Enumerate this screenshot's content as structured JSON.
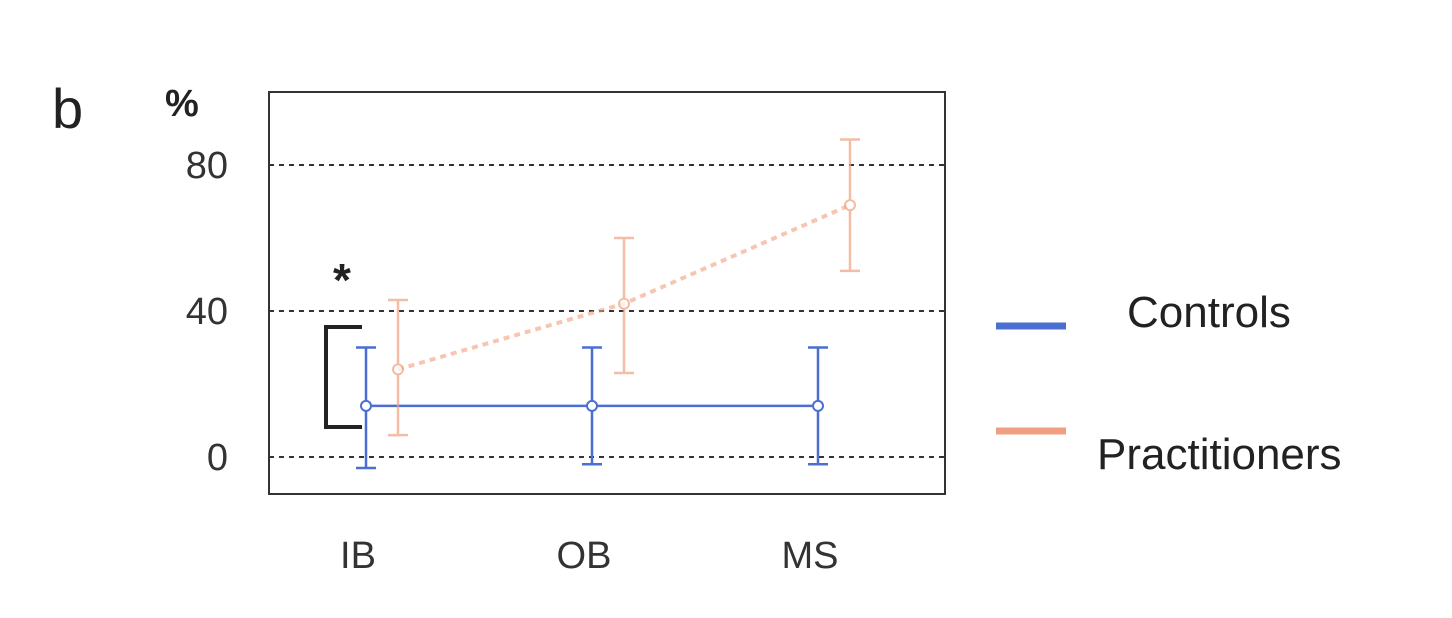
{
  "panel_label": "b",
  "chart_data": {
    "type": "line",
    "ylabel": "%",
    "ylim": [
      -10,
      100
    ],
    "yticks": [
      0,
      40,
      80
    ],
    "categories": [
      "IB",
      "OB",
      "MS"
    ],
    "grid": "horizontal-dashed",
    "legend_position": "right",
    "series": [
      {
        "name": "Controls",
        "color": "#4a6fd0",
        "values": [
          14,
          14,
          14
        ],
        "error_low": [
          -3,
          -2,
          -2
        ],
        "error_high": [
          30,
          30,
          30
        ]
      },
      {
        "name": "Practitioners",
        "color": "#f0a080",
        "values": [
          24,
          42,
          69
        ],
        "error_low": [
          6,
          23,
          51
        ],
        "error_high": [
          43,
          60,
          87
        ]
      }
    ],
    "annotation": {
      "text": "*",
      "between": "IB"
    }
  }
}
